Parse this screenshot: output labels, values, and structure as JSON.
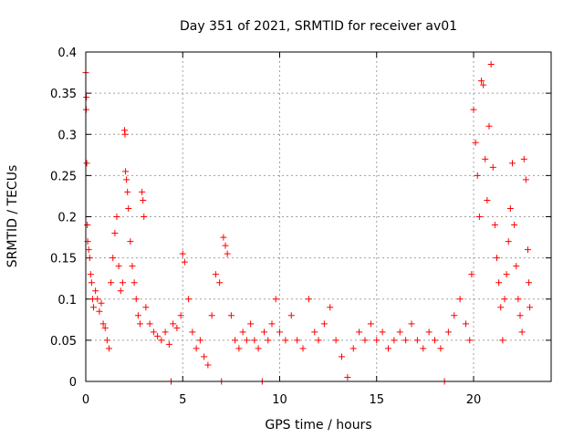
{
  "chart_data": {
    "type": "scatter",
    "title": "Day 351 of 2021, SRMTID for receiver av01",
    "xlabel": "GPS time / hours",
    "ylabel": "SRMTID / TECUs",
    "xlim": [
      0,
      24
    ],
    "ylim": [
      0,
      0.4
    ],
    "xticks": [
      0,
      5,
      10,
      15,
      20
    ],
    "xtick_labels": [
      "0",
      "5",
      "10",
      "15",
      "20"
    ],
    "yticks": [
      0,
      0.05,
      0.1,
      0.15,
      0.2,
      0.25,
      0.3,
      0.35,
      0.4
    ],
    "ytick_labels": [
      "0",
      "0.05",
      "0.1",
      "0.15",
      "0.2",
      "0.25",
      "0.3",
      "0.35",
      "0.4"
    ],
    "grid": true,
    "marker": "plus",
    "color": "#ff0000",
    "series": [
      {
        "name": "SRMTID av01",
        "points": [
          [
            0.0,
            0.375
          ],
          [
            0.02,
            0.33
          ],
          [
            0.03,
            0.345
          ],
          [
            0.05,
            0.265
          ],
          [
            0.08,
            0.19
          ],
          [
            0.1,
            0.17
          ],
          [
            0.15,
            0.16
          ],
          [
            0.2,
            0.15
          ],
          [
            0.25,
            0.13
          ],
          [
            0.3,
            0.12
          ],
          [
            0.35,
            0.1
          ],
          [
            0.4,
            0.09
          ],
          [
            0.5,
            0.11
          ],
          [
            0.6,
            0.1
          ],
          [
            0.7,
            0.085
          ],
          [
            0.8,
            0.095
          ],
          [
            0.9,
            0.07
          ],
          [
            1.0,
            0.065
          ],
          [
            1.1,
            0.05
          ],
          [
            1.2,
            0.04
          ],
          [
            1.3,
            0.12
          ],
          [
            1.4,
            0.15
          ],
          [
            1.5,
            0.18
          ],
          [
            1.6,
            0.2
          ],
          [
            1.7,
            0.14
          ],
          [
            1.8,
            0.11
          ],
          [
            1.9,
            0.12
          ],
          [
            2.0,
            0.305
          ],
          [
            2.02,
            0.3
          ],
          [
            2.05,
            0.255
          ],
          [
            2.1,
            0.245
          ],
          [
            2.15,
            0.23
          ],
          [
            2.2,
            0.21
          ],
          [
            2.3,
            0.17
          ],
          [
            2.4,
            0.14
          ],
          [
            2.5,
            0.12
          ],
          [
            2.6,
            0.1
          ],
          [
            2.7,
            0.08
          ],
          [
            2.8,
            0.07
          ],
          [
            2.9,
            0.23
          ],
          [
            2.95,
            0.22
          ],
          [
            3.0,
            0.2
          ],
          [
            3.1,
            0.09
          ],
          [
            3.3,
            0.07
          ],
          [
            3.5,
            0.06
          ],
          [
            3.7,
            0.055
          ],
          [
            3.9,
            0.05
          ],
          [
            4.1,
            0.06
          ],
          [
            4.3,
            0.045
          ],
          [
            4.4,
            0.0
          ],
          [
            4.5,
            0.07
          ],
          [
            4.7,
            0.065
          ],
          [
            4.9,
            0.08
          ],
          [
            5.0,
            0.155
          ],
          [
            5.1,
            0.145
          ],
          [
            5.3,
            0.1
          ],
          [
            5.5,
            0.06
          ],
          [
            5.7,
            0.04
          ],
          [
            5.9,
            0.05
          ],
          [
            6.1,
            0.03
          ],
          [
            6.3,
            0.02
          ],
          [
            6.5,
            0.08
          ],
          [
            6.7,
            0.13
          ],
          [
            6.9,
            0.12
          ],
          [
            7.0,
            0.0
          ],
          [
            7.1,
            0.175
          ],
          [
            7.2,
            0.165
          ],
          [
            7.3,
            0.155
          ],
          [
            7.5,
            0.08
          ],
          [
            7.7,
            0.05
          ],
          [
            7.9,
            0.04
          ],
          [
            8.1,
            0.06
          ],
          [
            8.3,
            0.05
          ],
          [
            8.5,
            0.07
          ],
          [
            8.7,
            0.05
          ],
          [
            8.9,
            0.04
          ],
          [
            9.1,
            0.0
          ],
          [
            9.2,
            0.06
          ],
          [
            9.4,
            0.05
          ],
          [
            9.6,
            0.07
          ],
          [
            9.8,
            0.1
          ],
          [
            10.0,
            0.06
          ],
          [
            10.3,
            0.05
          ],
          [
            10.6,
            0.08
          ],
          [
            10.9,
            0.05
          ],
          [
            11.2,
            0.04
          ],
          [
            11.5,
            0.1
          ],
          [
            11.8,
            0.06
          ],
          [
            12.0,
            0.05
          ],
          [
            12.3,
            0.07
          ],
          [
            12.6,
            0.09
          ],
          [
            12.9,
            0.05
          ],
          [
            13.2,
            0.03
          ],
          [
            13.5,
            0.005
          ],
          [
            13.8,
            0.04
          ],
          [
            14.1,
            0.06
          ],
          [
            14.4,
            0.05
          ],
          [
            14.7,
            0.07
          ],
          [
            15.0,
            0.05
          ],
          [
            15.3,
            0.06
          ],
          [
            15.6,
            0.04
          ],
          [
            15.9,
            0.05
          ],
          [
            16.2,
            0.06
          ],
          [
            16.5,
            0.05
          ],
          [
            16.8,
            0.07
          ],
          [
            17.1,
            0.05
          ],
          [
            17.4,
            0.04
          ],
          [
            17.7,
            0.06
          ],
          [
            18.0,
            0.05
          ],
          [
            18.3,
            0.04
          ],
          [
            18.5,
            0.0
          ],
          [
            18.7,
            0.06
          ],
          [
            19.0,
            0.08
          ],
          [
            19.3,
            0.1
          ],
          [
            19.6,
            0.07
          ],
          [
            19.8,
            0.05
          ],
          [
            19.9,
            0.13
          ],
          [
            20.0,
            0.33
          ],
          [
            20.1,
            0.29
          ],
          [
            20.2,
            0.25
          ],
          [
            20.3,
            0.2
          ],
          [
            20.4,
            0.365
          ],
          [
            20.5,
            0.36
          ],
          [
            20.6,
            0.27
          ],
          [
            20.7,
            0.22
          ],
          [
            20.8,
            0.31
          ],
          [
            20.9,
            0.385
          ],
          [
            21.0,
            0.26
          ],
          [
            21.1,
            0.19
          ],
          [
            21.2,
            0.15
          ],
          [
            21.3,
            0.12
          ],
          [
            21.4,
            0.09
          ],
          [
            21.5,
            0.05
          ],
          [
            21.6,
            0.1
          ],
          [
            21.7,
            0.13
          ],
          [
            21.8,
            0.17
          ],
          [
            21.9,
            0.21
          ],
          [
            22.0,
            0.265
          ],
          [
            22.1,
            0.19
          ],
          [
            22.2,
            0.14
          ],
          [
            22.3,
            0.1
          ],
          [
            22.4,
            0.08
          ],
          [
            22.5,
            0.06
          ],
          [
            22.6,
            0.27
          ],
          [
            22.7,
            0.245
          ],
          [
            22.8,
            0.16
          ],
          [
            22.85,
            0.12
          ],
          [
            22.9,
            0.09
          ]
        ]
      }
    ]
  }
}
